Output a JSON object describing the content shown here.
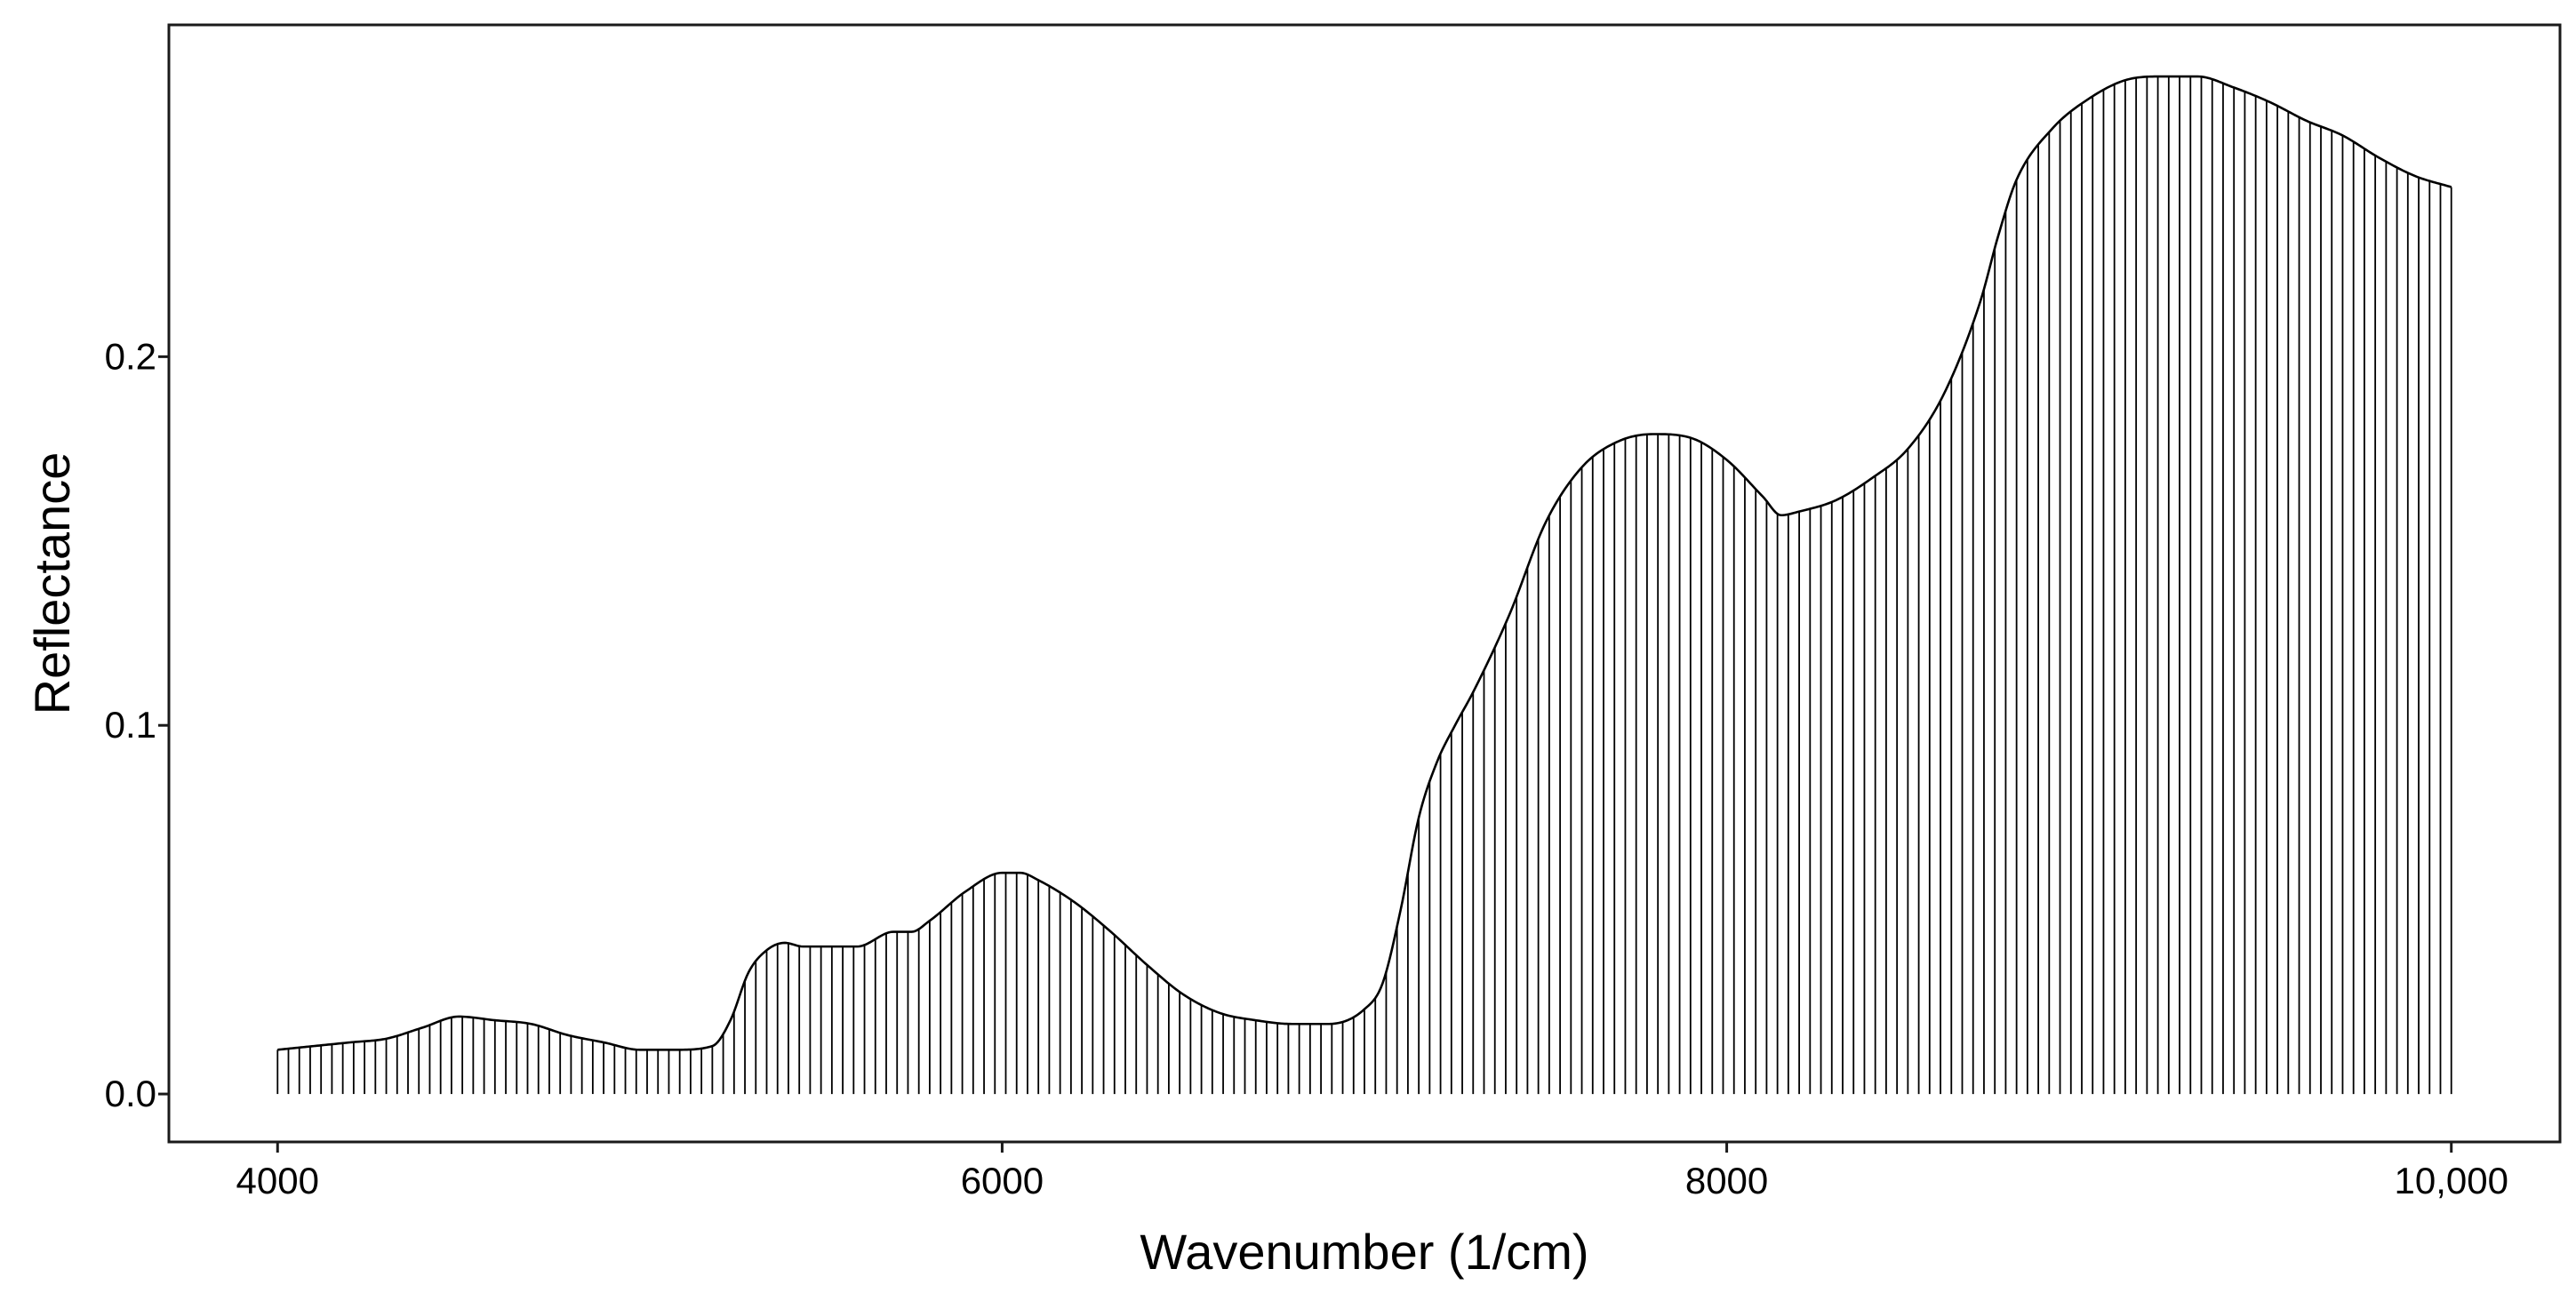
{
  "chart_data": {
    "type": "line",
    "title": "",
    "xlabel": "Wavenumber (1/cm)",
    "ylabel": "Reflectance",
    "xlim": [
      3700,
      10300
    ],
    "ylim": [
      -0.013,
      0.29
    ],
    "xticks": [
      4000,
      6000,
      8000,
      10000
    ],
    "xtick_labels": [
      "4000",
      "6000",
      "8000",
      "10,000"
    ],
    "yticks": [
      0.0,
      0.1,
      0.2
    ],
    "ytick_labels": [
      "0.0",
      "0.1",
      "0.2"
    ],
    "grid": false,
    "style": "spectrum line with vertical drop lines to zero",
    "x": [
      4000,
      4100,
      4200,
      4300,
      4400,
      4500,
      4600,
      4700,
      4800,
      4900,
      5000,
      5100,
      5200,
      5250,
      5300,
      5350,
      5400,
      5450,
      5500,
      5600,
      5700,
      5750,
      5800,
      5900,
      6000,
      6050,
      6100,
      6200,
      6300,
      6400,
      6500,
      6600,
      6700,
      6800,
      6900,
      7000,
      7050,
      7100,
      7150,
      7200,
      7250,
      7300,
      7400,
      7500,
      7600,
      7700,
      7800,
      7900,
      8000,
      8100,
      8150,
      8200,
      8300,
      8400,
      8500,
      8600,
      8700,
      8750,
      8800,
      8900,
      9000,
      9100,
      9200,
      9300,
      9400,
      9500,
      9600,
      9700,
      9800,
      9900,
      10000
    ],
    "y": [
      0.012,
      0.013,
      0.014,
      0.015,
      0.018,
      0.021,
      0.02,
      0.019,
      0.016,
      0.014,
      0.012,
      0.012,
      0.013,
      0.02,
      0.033,
      0.039,
      0.041,
      0.04,
      0.04,
      0.04,
      0.044,
      0.044,
      0.047,
      0.055,
      0.06,
      0.06,
      0.058,
      0.052,
      0.044,
      0.035,
      0.027,
      0.022,
      0.02,
      0.019,
      0.019,
      0.023,
      0.03,
      0.05,
      0.075,
      0.09,
      0.1,
      0.109,
      0.13,
      0.155,
      0.17,
      0.177,
      0.179,
      0.178,
      0.172,
      0.162,
      0.157,
      0.158,
      0.161,
      0.167,
      0.175,
      0.19,
      0.215,
      0.233,
      0.248,
      0.262,
      0.27,
      0.275,
      0.276,
      0.276,
      0.273,
      0.269,
      0.264,
      0.26,
      0.254,
      0.249,
      0.246
    ],
    "drop_line_x": [
      4000,
      4030,
      4060,
      4090,
      4120,
      4150,
      4180,
      4210,
      4240,
      4270,
      4300,
      4330,
      4360,
      4390,
      4420,
      4450,
      4480,
      4510,
      4540,
      4570,
      4600,
      4630,
      4660,
      4690,
      4720,
      4750,
      4780,
      4810,
      4840,
      4870,
      4900,
      4930,
      4960,
      4990,
      5020,
      5050,
      5080,
      5110,
      5140,
      5170,
      5200,
      5230,
      5260,
      5290,
      5320,
      5350,
      5380,
      5410,
      5440,
      5470,
      5500,
      5530,
      5560,
      5590,
      5620,
      5650,
      5680,
      5710,
      5740,
      5770,
      5800,
      5830,
      5860,
      5890,
      5920,
      5950,
      5980,
      6010,
      6040,
      6070,
      6100,
      6130,
      6160,
      6190,
      6220,
      6250,
      6280,
      6310,
      6340,
      6370,
      6400,
      6430,
      6460,
      6490,
      6520,
      6550,
      6580,
      6610,
      6640,
      6670,
      6700,
      6730,
      6760,
      6790,
      6820,
      6850,
      6880,
      6910,
      6940,
      6970,
      7000,
      7030,
      7060,
      7090,
      7120,
      7150,
      7180,
      7210,
      7240,
      7270,
      7300,
      7330,
      7360,
      7390,
      7420,
      7450,
      7480,
      7510,
      7540,
      7570,
      7600,
      7630,
      7660,
      7690,
      7720,
      7750,
      7780,
      7810,
      7840,
      7870,
      7900,
      7930,
      7960,
      7990,
      8020,
      8050,
      8080,
      8110,
      8140,
      8170,
      8200,
      8230,
      8260,
      8290,
      8320,
      8350,
      8380,
      8410,
      8440,
      8470,
      8500,
      8530,
      8560,
      8590,
      8620,
      8650,
      8680,
      8710,
      8740,
      8770,
      8800,
      8830,
      8860,
      8890,
      8920,
      8950,
      8980,
      9010,
      9040,
      9070,
      9100,
      9130,
      9160,
      9190,
      9220,
      9250,
      9280,
      9310,
      9340,
      9370,
      9400,
      9430,
      9460,
      9490,
      9520,
      9550,
      9580,
      9610,
      9640,
      9670,
      9700,
      9730,
      9760,
      9790,
      9820,
      9850,
      9880,
      9910,
      9940,
      9970,
      10000
    ]
  }
}
